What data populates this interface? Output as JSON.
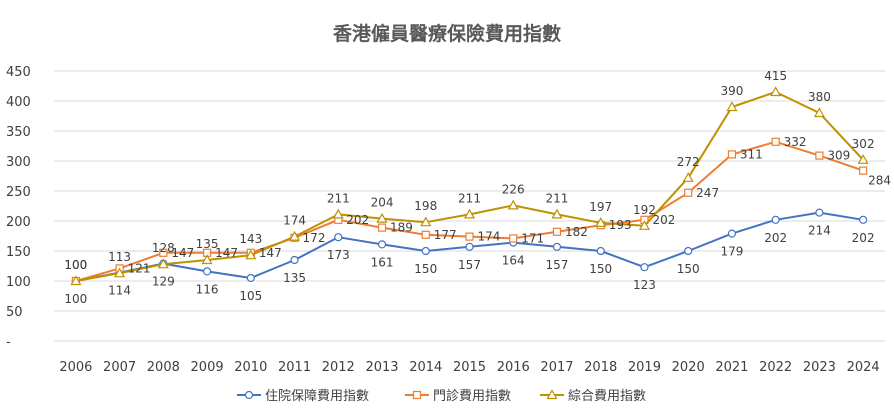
{
  "chart_data": {
    "type": "line",
    "title": "香港僱員醫療保險費用指數",
    "xlabel": "",
    "ylabel": "",
    "ylim": [
      0,
      450
    ],
    "yticks": [
      0,
      50,
      100,
      150,
      200,
      250,
      300,
      350,
      400,
      450
    ],
    "ytick_labels": [
      "-",
      "50",
      "100",
      "150",
      "200",
      "250",
      "300",
      "350",
      "400",
      "450"
    ],
    "grid": true,
    "legend_position": "bottom",
    "categories": [
      "2006",
      "2007",
      "2008",
      "2009",
      "2010",
      "2011",
      "2012",
      "2013",
      "2014",
      "2015",
      "2016",
      "2017",
      "2018",
      "2019",
      "2020",
      "2021",
      "2022",
      "2023",
      "2024"
    ],
    "series": [
      {
        "name": "住院保障費用指數",
        "color": "#4472c4",
        "marker": "circle",
        "values": [
          100,
          114,
          129,
          116,
          105,
          135,
          173,
          161,
          150,
          157,
          164,
          157,
          150,
          123,
          150,
          179,
          202,
          214,
          202
        ]
      },
      {
        "name": "門診費用指數",
        "color": "#ed7d31",
        "marker": "square",
        "values": [
          100,
          121,
          147,
          147,
          147,
          172,
          202,
          189,
          177,
          174,
          171,
          182,
          193,
          202,
          247,
          311,
          332,
          309,
          284
        ]
      },
      {
        "name": "綜合費用指數",
        "color": "#bf9000",
        "marker": "triangle",
        "values": [
          100,
          113,
          128,
          135,
          143,
          174,
          211,
          204,
          198,
          211,
          226,
          211,
          197,
          192,
          272,
          390,
          415,
          380,
          302
        ]
      }
    ]
  }
}
